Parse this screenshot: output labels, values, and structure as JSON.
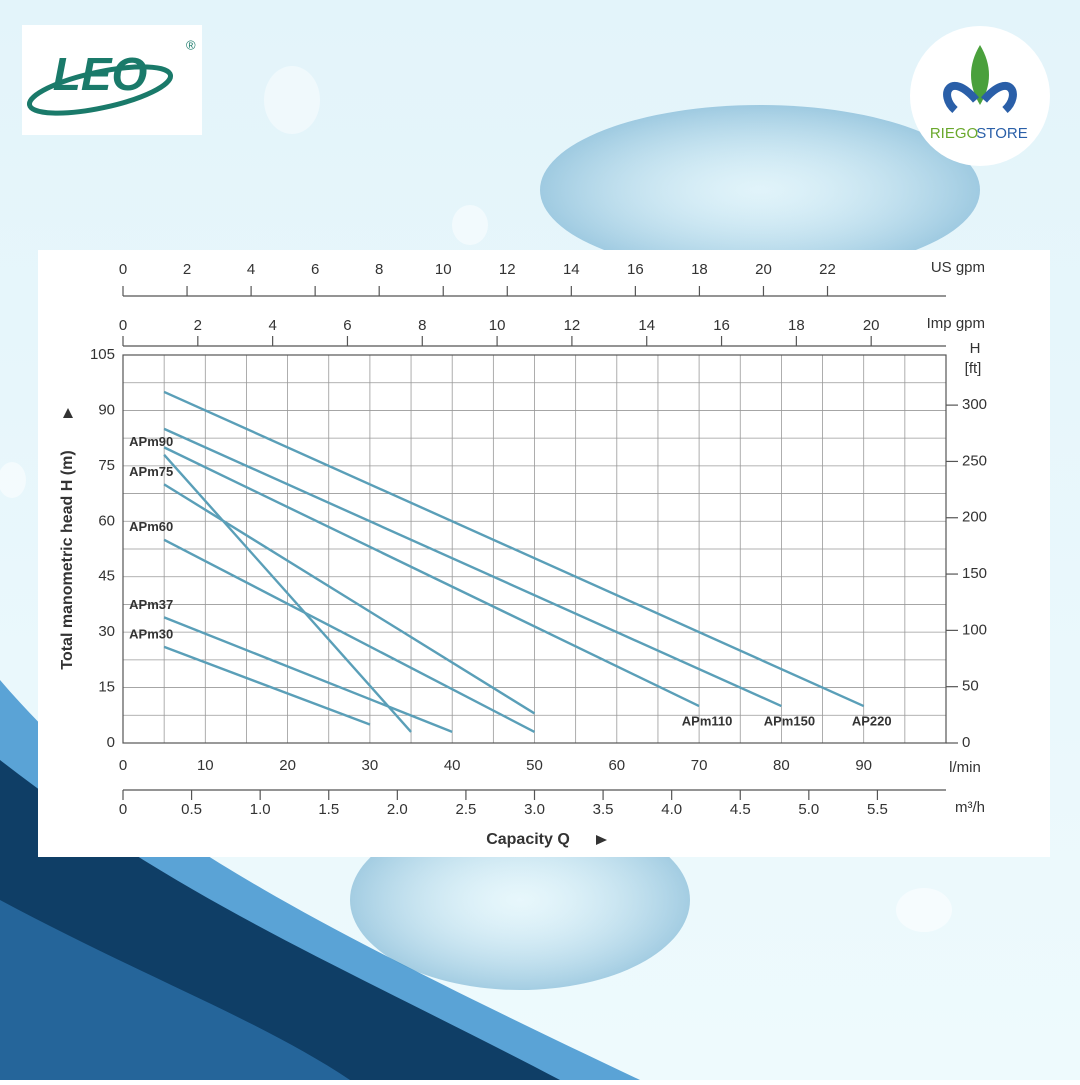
{
  "logos": {
    "brand": "LEO",
    "registered": "®",
    "store_a": "RIEGO",
    "store_b": "STORE"
  },
  "chart_data": {
    "type": "line",
    "ylabel": "Total manometric head H (m)",
    "xlabel": "Capacity Q",
    "xunit": "l/min",
    "y2label": {
      "symbol": "H",
      "unit": "[ft]"
    },
    "xlim": [
      0,
      100
    ],
    "xticks": [
      0,
      10,
      20,
      30,
      40,
      50,
      60,
      70,
      80,
      90
    ],
    "ylim": [
      0,
      105
    ],
    "yticks": [
      0,
      15,
      30,
      45,
      60,
      75,
      90,
      105
    ],
    "y2lim": [
      0,
      344.5
    ],
    "y2ticks": [
      0,
      50,
      100,
      150,
      200,
      250,
      300
    ],
    "grid": true,
    "extra_x_axes": [
      {
        "name": "US gpm",
        "position": "top",
        "lim": [
          0,
          25.7
        ],
        "ticks": [
          0,
          2,
          4,
          6,
          8,
          10,
          12,
          14,
          16,
          18,
          20,
          22
        ]
      },
      {
        "name": "Imp gpm",
        "position": "top",
        "lim": [
          0,
          22
        ],
        "ticks": [
          0,
          2,
          4,
          6,
          8,
          10,
          12,
          14,
          16,
          18,
          20
        ]
      },
      {
        "name": "m³/h",
        "position": "bottom",
        "lim": [
          0,
          6
        ],
        "ticks": [
          0,
          0.5,
          {
            "value": 1,
            "label": "1.0"
          },
          1.5,
          {
            "value": 2,
            "label": "2.0"
          },
          2.5,
          {
            "value": 3,
            "label": "3.0"
          },
          3.5,
          {
            "value": 4,
            "label": "4.0"
          },
          4.5,
          {
            "value": 5,
            "label": "5.0"
          },
          5.5
        ]
      }
    ],
    "series": [
      {
        "name": "AP220",
        "color": "#5a9fb8",
        "x": [
          5,
          90
        ],
        "values": [
          95,
          10
        ]
      },
      {
        "name": "APm150",
        "color": "#5a9fb8",
        "x": [
          5,
          80
        ],
        "values": [
          85,
          10
        ]
      },
      {
        "name": "APm110",
        "color": "#5a9fb8",
        "x": [
          5,
          70
        ],
        "values": [
          80,
          10
        ]
      },
      {
        "name": "APm90",
        "color": "#5a9fb8",
        "x": [
          5,
          35
        ],
        "values": [
          78,
          3
        ]
      },
      {
        "name": "APm75",
        "color": "#5a9fb8",
        "x": [
          5,
          50
        ],
        "values": [
          70,
          8
        ]
      },
      {
        "name": "APm60",
        "color": "#5a9fb8",
        "x": [
          5,
          50
        ],
        "values": [
          55,
          3
        ]
      },
      {
        "name": "APm37",
        "color": "#5a9fb8",
        "x": [
          5,
          40
        ],
        "values": [
          34,
          3
        ]
      },
      {
        "name": "APm30",
        "color": "#5a9fb8",
        "x": [
          5,
          30
        ],
        "values": [
          26,
          5
        ]
      }
    ]
  }
}
